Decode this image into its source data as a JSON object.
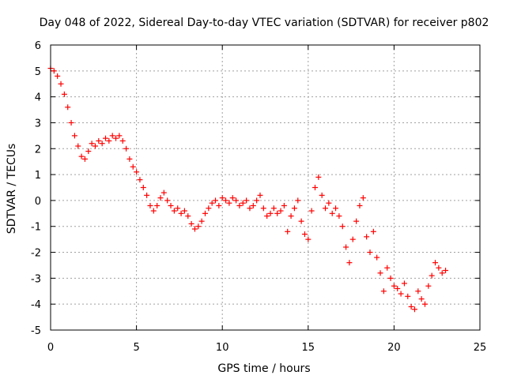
{
  "chart_data": {
    "type": "scatter",
    "title": "Day 048 of 2022, Sidereal Day-to-day VTEC variation (SDTVAR) for receiver p802",
    "xlabel": "GPS time / hours",
    "ylabel": "SDTVAR / TECUs",
    "xlim": [
      0,
      25
    ],
    "ylim": [
      -5,
      6
    ],
    "xticks": [
      0,
      5,
      10,
      15,
      20,
      25
    ],
    "yticks": [
      -5,
      -4,
      -3,
      -2,
      -1,
      0,
      1,
      2,
      3,
      4,
      5,
      6
    ],
    "grid": true,
    "marker": "+",
    "color": "#ff0000",
    "series": [
      {
        "name": "SDTVAR",
        "x": [
          0.0,
          0.2,
          0.4,
          0.6,
          0.8,
          1.0,
          1.2,
          1.4,
          1.6,
          1.8,
          2.0,
          2.2,
          2.4,
          2.6,
          2.8,
          3.0,
          3.2,
          3.4,
          3.6,
          3.8,
          4.0,
          4.2,
          4.4,
          4.6,
          4.8,
          5.0,
          5.2,
          5.4,
          5.6,
          5.8,
          6.0,
          6.2,
          6.4,
          6.6,
          6.8,
          7.0,
          7.2,
          7.4,
          7.6,
          7.8,
          8.0,
          8.2,
          8.4,
          8.6,
          8.8,
          9.0,
          9.2,
          9.4,
          9.6,
          9.8,
          10.0,
          10.2,
          10.4,
          10.6,
          10.8,
          11.0,
          11.2,
          11.4,
          11.6,
          11.8,
          12.0,
          12.2,
          12.4,
          12.6,
          12.8,
          13.0,
          13.2,
          13.4,
          13.6,
          13.8,
          14.0,
          14.2,
          14.4,
          14.6,
          14.8,
          15.0,
          15.2,
          15.4,
          15.6,
          15.8,
          16.0,
          16.2,
          16.4,
          16.6,
          16.8,
          17.0,
          17.2,
          17.4,
          17.6,
          17.8,
          18.0,
          18.2,
          18.4,
          18.6,
          18.8,
          19.0,
          19.2,
          19.4,
          19.6,
          19.8,
          20.0,
          20.2,
          20.4,
          20.6,
          20.8,
          21.0,
          21.2,
          21.4,
          21.6,
          21.8,
          22.0,
          22.2,
          22.4,
          22.6,
          22.8,
          23.0
        ],
        "y": [
          5.1,
          5.0,
          4.8,
          4.5,
          4.1,
          3.6,
          3.0,
          2.5,
          2.1,
          1.7,
          1.6,
          1.9,
          2.2,
          2.1,
          2.3,
          2.2,
          2.4,
          2.3,
          2.5,
          2.4,
          2.5,
          2.3,
          2.0,
          1.6,
          1.3,
          1.1,
          0.8,
          0.5,
          0.2,
          -0.2,
          -0.4,
          -0.2,
          0.1,
          0.3,
          0.0,
          -0.2,
          -0.4,
          -0.3,
          -0.5,
          -0.4,
          -0.6,
          -0.9,
          -1.1,
          -1.0,
          -0.8,
          -0.5,
          -0.3,
          -0.1,
          0.0,
          -0.2,
          0.1,
          0.0,
          -0.1,
          0.1,
          0.0,
          -0.2,
          -0.1,
          0.0,
          -0.3,
          -0.2,
          0.0,
          0.2,
          -0.3,
          -0.6,
          -0.5,
          -0.3,
          -0.5,
          -0.4,
          -0.2,
          -1.2,
          -0.6,
          -0.3,
          0.0,
          -0.8,
          -1.3,
          -1.5,
          -0.4,
          0.5,
          0.9,
          0.2,
          -0.3,
          -0.1,
          -0.5,
          -0.3,
          -0.6,
          -1.0,
          -1.8,
          -2.4,
          -1.5,
          -0.8,
          -0.2,
          0.1,
          -1.4,
          -2.0,
          -1.2,
          -2.2,
          -2.8,
          -3.5,
          -2.6,
          -3.0,
          -3.3,
          -3.4,
          -3.6,
          -3.2,
          -3.7,
          -4.1,
          -4.2,
          -3.5,
          -3.8,
          -4.0,
          -3.3,
          -2.9,
          -2.4,
          -2.6,
          -2.8,
          -2.7
        ]
      }
    ]
  }
}
